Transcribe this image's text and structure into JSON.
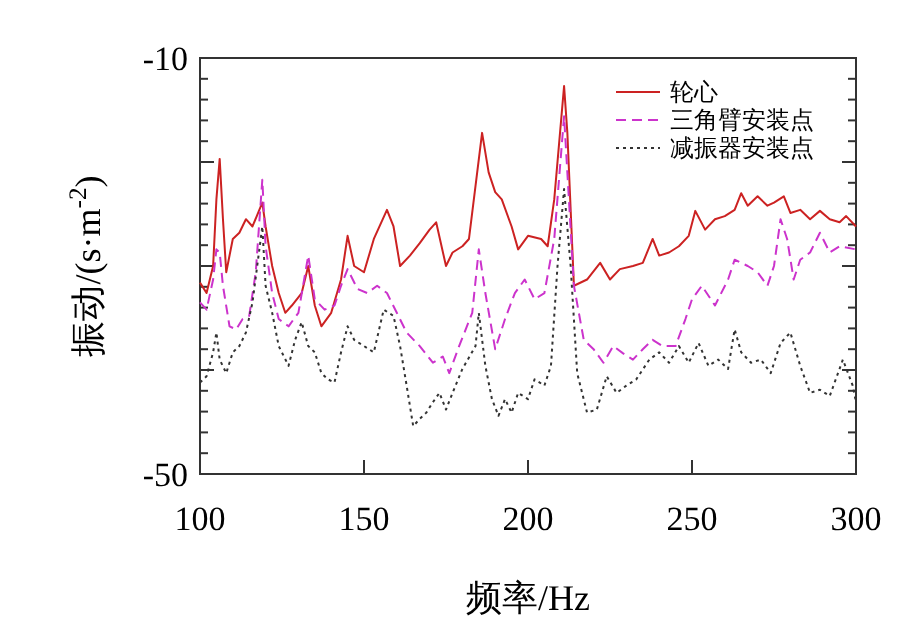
{
  "chart_data": {
    "type": "line",
    "xlabel": "频率/Hz",
    "ylabel": "振动/(s·m$^{-2}$)",
    "xlim": [
      100,
      300
    ],
    "xticks": [
      100,
      150,
      200,
      250,
      300
    ],
    "ylim": [
      -50,
      -10
    ],
    "yticks": [
      -10,
      {
        "value": -12,
        "label": null
      },
      {
        "value": -14,
        "label": null
      },
      {
        "value": -16,
        "label": null
      },
      {
        "value": -18,
        "label": null
      },
      {
        "value": -20,
        "label": null
      },
      {
        "value": -22,
        "label": null
      },
      {
        "value": -24,
        "label": null
      },
      {
        "value": -26,
        "label": null
      },
      {
        "value": -28,
        "label": null
      },
      {
        "value": -30,
        "label": null
      },
      {
        "value": -32,
        "label": null
      },
      {
        "value": -34,
        "label": null
      },
      {
        "value": -36,
        "label": null
      },
      {
        "value": -38,
        "label": null
      },
      {
        "value": -40,
        "label": null
      },
      {
        "value": -42,
        "label": null
      },
      {
        "value": -44,
        "label": null
      },
      {
        "value": -46,
        "label": null
      },
      {
        "value": -48,
        "label": null
      },
      -50
    ],
    "legend": "top right",
    "grid": false,
    "marker": "none",
    "series": [
      {
        "name": "轮心",
        "color": "#cc2222",
        "line_style": "solid",
        "x": [
          100,
          102,
          104,
          105,
          106,
          107,
          108,
          110,
          112,
          114,
          116,
          119,
          120,
          122,
          124,
          126,
          128,
          131,
          133,
          135,
          137,
          140,
          143,
          145,
          147,
          150,
          153,
          157,
          159,
          161,
          164,
          167,
          170,
          172,
          175,
          177,
          180,
          182,
          186,
          188,
          190,
          192,
          195,
          197,
          200,
          204,
          206,
          208,
          211,
          212,
          214,
          218,
          222,
          225,
          228,
          232,
          235,
          238,
          240,
          243,
          246,
          249,
          251,
          254,
          257,
          260,
          263,
          265,
          267,
          270,
          273,
          275,
          278,
          280,
          283,
          286,
          289,
          292,
          295,
          297,
          300
        ],
        "values": [
          -31.6,
          -32.6,
          -30,
          -23.6,
          -19.7,
          -25.5,
          -30.6,
          -27.4,
          -26.8,
          -25.5,
          -26.2,
          -23.9,
          -26.2,
          -30,
          -32.6,
          -34.5,
          -33.8,
          -32.6,
          -30,
          -33.8,
          -35.8,
          -34.5,
          -31.3,
          -27.1,
          -30,
          -30.6,
          -27.4,
          -24.6,
          -26.2,
          -30,
          -29,
          -27.8,
          -26.5,
          -25.8,
          -30,
          -28.7,
          -28.1,
          -27.4,
          -17.2,
          -21,
          -22.9,
          -23.6,
          -26.2,
          -28.4,
          -27.1,
          -27.4,
          -28.1,
          -23.6,
          -12.7,
          -17.2,
          -31.9,
          -31.3,
          -29.7,
          -31.3,
          -30.3,
          -30,
          -29.7,
          -27.4,
          -29,
          -28.7,
          -28.1,
          -27.1,
          -24.7,
          -26.5,
          -25.5,
          -25.2,
          -24.6,
          -23,
          -24.2,
          -23.3,
          -24.2,
          -23.9,
          -23.3,
          -24.9,
          -24.6,
          -25.5,
          -24.7,
          -25.5,
          -25.8,
          -25.2,
          -26.2
        ]
      },
      {
        "name": "三角臂安装点",
        "color": "#cc33cc",
        "line_style": "dashed",
        "x": [
          100,
          102,
          104,
          105,
          106,
          107,
          109,
          111,
          113,
          115,
          117,
          119,
          120,
          122,
          124,
          127,
          130,
          133,
          135,
          138,
          141,
          143,
          145,
          148,
          151,
          154,
          157,
          160,
          163,
          167,
          171,
          174,
          176,
          179,
          183,
          185,
          187,
          190,
          193,
          196,
          199,
          202,
          205,
          208,
          211,
          214,
          217,
          220,
          223,
          226,
          229,
          232,
          235,
          238,
          241,
          245,
          248,
          250,
          253,
          257,
          261,
          263,
          267,
          270,
          273,
          275,
          277,
          279,
          281,
          283,
          286,
          289,
          292,
          295,
          300
        ],
        "values": [
          -33.5,
          -34.2,
          -31.3,
          -28.4,
          -28.7,
          -31.9,
          -35.8,
          -36.1,
          -35.1,
          -34.8,
          -30.6,
          -21.7,
          -28.1,
          -32.6,
          -35.1,
          -35.8,
          -34.5,
          -29,
          -33.2,
          -34.2,
          -33.8,
          -31.9,
          -30.3,
          -32.2,
          -32.6,
          -31.9,
          -32.6,
          -34.5,
          -36.4,
          -37.7,
          -39.3,
          -38.7,
          -40.3,
          -37.7,
          -34.5,
          -28.4,
          -32.6,
          -38,
          -35.1,
          -32.6,
          -31.3,
          -33.2,
          -32.6,
          -27.4,
          -15.6,
          -31.9,
          -37.1,
          -38,
          -39.3,
          -37.7,
          -38.4,
          -39,
          -38,
          -37.1,
          -37.7,
          -37.7,
          -35.1,
          -33.2,
          -31.9,
          -33.8,
          -31.3,
          -29.4,
          -30,
          -30.6,
          -31.9,
          -30,
          -25.5,
          -27.4,
          -31.3,
          -29.4,
          -28.7,
          -26.8,
          -28.7,
          -28.1,
          -28.4
        ]
      },
      {
        "name": "减振器安装点",
        "color": "#333333",
        "line_style": "dotted",
        "x": [
          100,
          102,
          104,
          105,
          106,
          108,
          110,
          112,
          114,
          116,
          119,
          120,
          122,
          124,
          127,
          129,
          131,
          133,
          135,
          137,
          139,
          141,
          143,
          145,
          147,
          150,
          153,
          156,
          159,
          161,
          163,
          165,
          167,
          169,
          171,
          173,
          175,
          177,
          180,
          184,
          185,
          187,
          189,
          191,
          193,
          195,
          197,
          200,
          202,
          205,
          207,
          209,
          211,
          213,
          215,
          218,
          221,
          224,
          227,
          230,
          233,
          237,
          240,
          243,
          246,
          249,
          252,
          255,
          258,
          261,
          263,
          265,
          268,
          271,
          274,
          277,
          280,
          283,
          286,
          289,
          292,
          296,
          299,
          300
        ],
        "values": [
          -41.2,
          -40.6,
          -38.3,
          -36.4,
          -39,
          -40.3,
          -38.3,
          -37.7,
          -36.4,
          -33.5,
          -26.2,
          -31.9,
          -34.5,
          -37.7,
          -39.6,
          -37.1,
          -35.4,
          -37.7,
          -38.3,
          -40.3,
          -40.9,
          -41.2,
          -38.3,
          -35.8,
          -37.1,
          -37.7,
          -38.3,
          -34.2,
          -34.8,
          -37.7,
          -41.5,
          -45.4,
          -44.7,
          -44.1,
          -43.1,
          -42.2,
          -43.8,
          -42.2,
          -39.9,
          -37.7,
          -34.5,
          -39.6,
          -42.8,
          -44.4,
          -42.8,
          -44.1,
          -42.2,
          -42.8,
          -40.9,
          -41.5,
          -39.6,
          -30,
          -22.6,
          -30,
          -40.3,
          -44.1,
          -43.8,
          -40.6,
          -42.2,
          -41.5,
          -40.9,
          -39,
          -38.3,
          -39.3,
          -37.7,
          -39.3,
          -37.4,
          -39.6,
          -39,
          -39.9,
          -36.1,
          -38.3,
          -39.3,
          -39,
          -40.3,
          -37.4,
          -36.4,
          -39.6,
          -42.2,
          -41.9,
          -42.5,
          -39,
          -41.5,
          -43.1
        ]
      }
    ]
  }
}
